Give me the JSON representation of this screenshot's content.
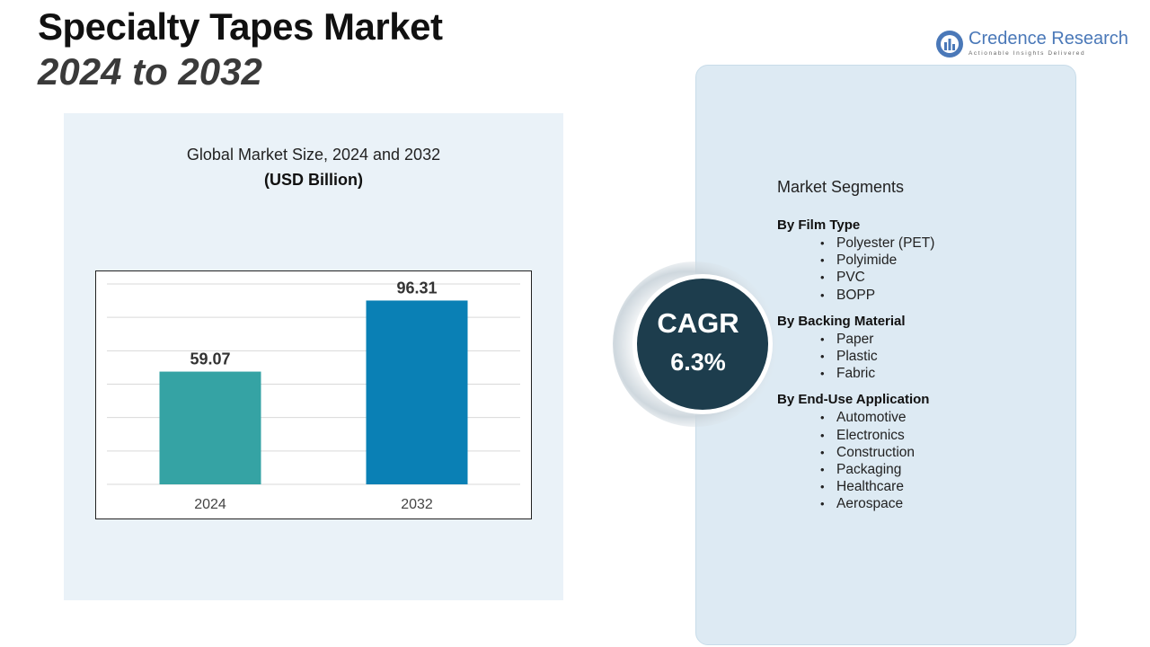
{
  "header": {
    "title_line1": "Specialty Tapes Market",
    "title_line2": "2024 to 2032"
  },
  "logo": {
    "name": "Credence Research",
    "tagline": "Actionable Insights Delivered",
    "icon": "credence-logo-icon"
  },
  "chart_panel": {
    "title": "Global Market Size, 2024 and 2032",
    "unit": "(USD Billion)"
  },
  "chart_data": {
    "type": "bar",
    "categories": [
      "2024",
      "2032"
    ],
    "values": [
      59.07,
      96.31
    ],
    "data_labels": [
      "59.07",
      "96.31"
    ],
    "colors": [
      "#35a3a4",
      "#0a80b5"
    ],
    "title": "Global Market Size, 2024 and 2032",
    "ylabel": "(USD Billion)",
    "ylim": [
      0,
      105
    ],
    "grid": true,
    "legend": "none"
  },
  "cagr": {
    "label": "CAGR",
    "value": "6.3%"
  },
  "segments": {
    "heading": "Market Segments",
    "groups": [
      {
        "title": "By Film Type",
        "items": [
          "Polyester (PET)",
          "Polyimide",
          "PVC",
          "BOPP"
        ]
      },
      {
        "title": "By Backing Material",
        "items": [
          "Paper",
          "Plastic",
          "Fabric"
        ]
      },
      {
        "title": "By End-Use Application",
        "items": [
          "Automotive",
          "Electronics",
          "Construction",
          "Packaging",
          "Healthcare",
          "Aerospace"
        ]
      }
    ]
  },
  "colors": {
    "accent": "#0a80b5",
    "bar_2024": "#35a3a4",
    "cagr_circle": "#1d3d4d",
    "panel_bg": "#eaf2f8"
  }
}
